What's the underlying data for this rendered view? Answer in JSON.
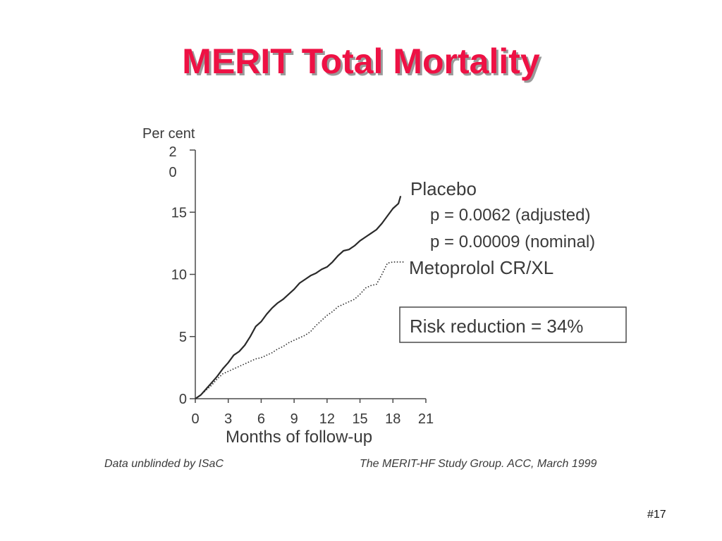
{
  "slide": {
    "title": "MERIT Total Mortality",
    "slide_number": "#17",
    "footnote_left": "Data unblinded by ISaC",
    "footnote_right": "The MERIT-HF Study Group. ACC, March 1999",
    "title_color": "#ee1144"
  },
  "chart_data": {
    "type": "line",
    "ylabel": "Per cent",
    "ylabel_top_tick": [
      "2",
      "0"
    ],
    "xlabel": "Months of follow-up",
    "xlim": [
      0,
      21
    ],
    "ylim": [
      0,
      20
    ],
    "x_ticks": [
      "0",
      "3",
      "6",
      "9",
      "12",
      "15",
      "18",
      "21"
    ],
    "y_ticks": [
      "0",
      "5",
      "10",
      "15"
    ],
    "grid": false,
    "series": [
      {
        "name": "Placebo",
        "line_style": "solid",
        "color": "#2a2a2a",
        "points": [
          [
            0,
            0
          ],
          [
            0.5,
            0.3
          ],
          [
            1,
            0.8
          ],
          [
            1.5,
            1.3
          ],
          [
            2,
            1.8
          ],
          [
            2.5,
            2.4
          ],
          [
            3,
            2.9
          ],
          [
            3.5,
            3.5
          ],
          [
            4,
            3.8
          ],
          [
            4.5,
            4.3
          ],
          [
            5,
            5.0
          ],
          [
            5.5,
            5.8
          ],
          [
            6,
            6.2
          ],
          [
            6.5,
            6.8
          ],
          [
            7,
            7.3
          ],
          [
            7.5,
            7.7
          ],
          [
            8,
            8.0
          ],
          [
            8.5,
            8.4
          ],
          [
            9,
            8.8
          ],
          [
            9.5,
            9.3
          ],
          [
            10,
            9.6
          ],
          [
            10.5,
            9.9
          ],
          [
            11,
            10.1
          ],
          [
            11.5,
            10.4
          ],
          [
            12,
            10.6
          ],
          [
            12.5,
            11.0
          ],
          [
            13,
            11.5
          ],
          [
            13.5,
            11.9
          ],
          [
            14,
            12.0
          ],
          [
            14.5,
            12.3
          ],
          [
            15,
            12.7
          ],
          [
            15.5,
            13.0
          ],
          [
            16,
            13.3
          ],
          [
            16.5,
            13.6
          ],
          [
            17,
            14.1
          ],
          [
            17.5,
            14.7
          ],
          [
            18,
            15.3
          ],
          [
            18.5,
            15.7
          ],
          [
            18.7,
            16.3
          ]
        ]
      },
      {
        "name": "Metoprolol CR/XL",
        "line_style": "dotted",
        "color": "#2a2a2a",
        "points": [
          [
            0,
            0
          ],
          [
            0.5,
            0.3
          ],
          [
            1,
            0.7
          ],
          [
            1.5,
            1.1
          ],
          [
            2,
            1.6
          ],
          [
            2.5,
            2.0
          ],
          [
            3,
            2.2
          ],
          [
            3.5,
            2.4
          ],
          [
            4,
            2.6
          ],
          [
            4.5,
            2.8
          ],
          [
            5,
            3.0
          ],
          [
            5.5,
            3.2
          ],
          [
            6,
            3.3
          ],
          [
            6.5,
            3.5
          ],
          [
            7,
            3.7
          ],
          [
            7.5,
            4.0
          ],
          [
            8,
            4.2
          ],
          [
            8.5,
            4.5
          ],
          [
            9,
            4.7
          ],
          [
            9.5,
            4.9
          ],
          [
            10,
            5.1
          ],
          [
            10.5,
            5.4
          ],
          [
            11,
            5.9
          ],
          [
            11.5,
            6.3
          ],
          [
            12,
            6.7
          ],
          [
            12.5,
            7.0
          ],
          [
            13,
            7.4
          ],
          [
            13.5,
            7.6
          ],
          [
            14,
            7.8
          ],
          [
            14.5,
            8.0
          ],
          [
            15,
            8.4
          ],
          [
            15.5,
            8.9
          ],
          [
            16,
            9.1
          ],
          [
            16.5,
            9.2
          ],
          [
            17,
            10.0
          ],
          [
            17.5,
            10.9
          ],
          [
            18,
            11.0
          ],
          [
            19,
            11.0
          ]
        ]
      }
    ],
    "annotations": {
      "placebo_label": "Placebo",
      "p_adjusted": "p = 0.0062 (adjusted)",
      "p_nominal": "p = 0.00009 (nominal)",
      "metoprolol_label": "Metoprolol CR/XL",
      "risk_reduction": "Risk reduction = 34%"
    }
  }
}
